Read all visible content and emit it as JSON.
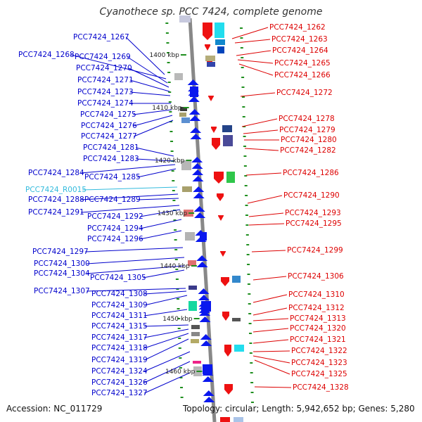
{
  "title": "Cyanothece sp. PCC 7424, complete genome",
  "footer": {
    "accession": "Accession: NC_011729",
    "topology": "Topology: circular; Length: 5,942,652 bp; Genes: 5,280"
  },
  "colors": {
    "left_label": "#0000cc",
    "right_label": "#dd0000",
    "rna_label": "#33bbdd",
    "forward_feature": "#0a18ee",
    "reverse_feature": "#ee1111",
    "ruler_tick": "#1f8f1f",
    "backbone": "#888888"
  },
  "scale_labels": [
    "1400 kbp",
    "1410 kbp",
    "1420 kbp",
    "1430 kbp",
    "1440 kbp",
    "1450 kbp",
    "1460 kbp"
  ],
  "left_labels": [
    "PCC7424_1267",
    "PCC7424_1268",
    "PCC7424_1269",
    "PCC7424_1270",
    "PCC7424_1271",
    "PCC7424_1273",
    "PCC7424_1274",
    "PCC7424_1275",
    "PCC7424_1276",
    "PCC7424_1277",
    "PCC7424_1281",
    "PCC7424_1283",
    "PCC7424_1284",
    "PCC7424_1285",
    "PCC7424_R0015",
    "PCC7424_1288",
    "PCC7424_1289",
    "PCC7424_1291",
    "PCC7424_1292",
    "PCC7424_1294",
    "PCC7424_1296",
    "PCC7424_1297",
    "PCC7424_1300",
    "PCC7424_1304",
    "PCC7424_1305",
    "PCC7424_1307",
    "PCC7424_1308",
    "PCC7424_1309",
    "PCC7424_1311",
    "PCC7424_1315",
    "PCC7424_1317",
    "PCC7424_1318",
    "PCC7424_1319",
    "PCC7424_1324",
    "PCC7424_1326",
    "PCC7424_1327"
  ],
  "right_labels": [
    "PCC7424_1262",
    "PCC7424_1263",
    "PCC7424_1264",
    "PCC7424_1265",
    "PCC7424_1266",
    "PCC7424_1272",
    "PCC7424_1278",
    "PCC7424_1279",
    "PCC7424_1280",
    "PCC7424_1282",
    "PCC7424_1286",
    "PCC7424_1290",
    "PCC7424_1293",
    "PCC7424_1295",
    "PCC7424_1299",
    "PCC7424_1306",
    "PCC7424_1310",
    "PCC7424_1312",
    "PCC7424_1313",
    "PCC7424_1320",
    "PCC7424_1321",
    "PCC7424_1322",
    "PCC7424_1323",
    "PCC7424_1325",
    "PCC7424_1328"
  ]
}
